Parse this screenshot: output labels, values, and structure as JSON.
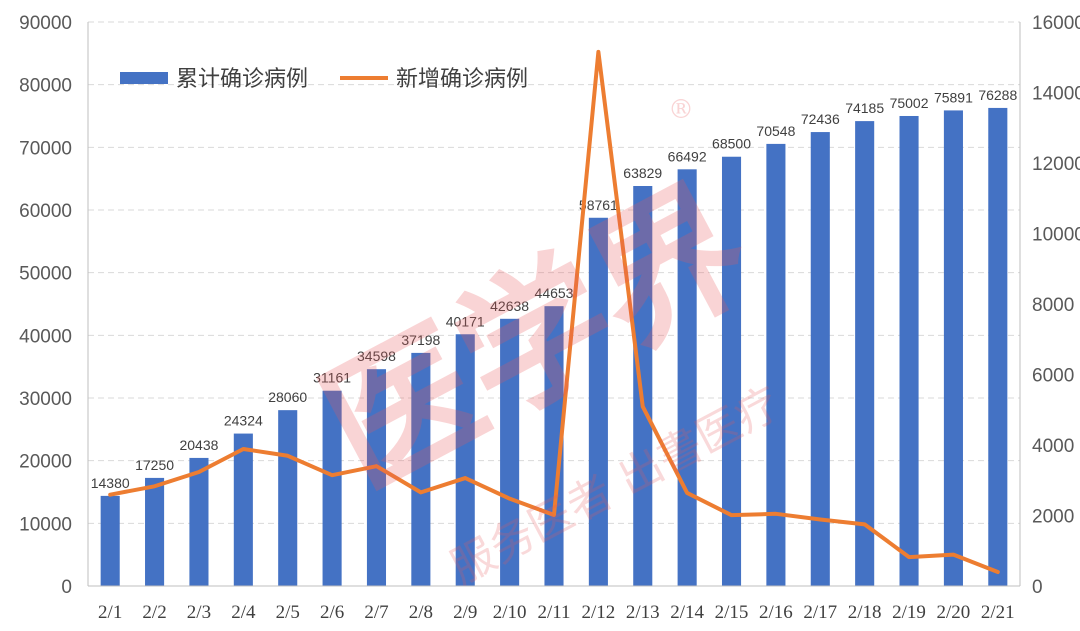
{
  "chart_data": {
    "type": "bar+line",
    "categories": [
      "2/1",
      "2/2",
      "2/3",
      "2/4",
      "2/5",
      "2/6",
      "2/7",
      "2/8",
      "2/9",
      "2/10",
      "2/11",
      "2/12",
      "2/13",
      "2/14",
      "2/15",
      "2/16",
      "2/17",
      "2/18",
      "2/19",
      "2/20",
      "2/21"
    ],
    "series": [
      {
        "name": "累计确诊病例",
        "type": "bar",
        "axis": "left",
        "color": "#4472c4",
        "values": [
          14380,
          17250,
          20438,
          24324,
          28060,
          31161,
          34598,
          37198,
          40171,
          42638,
          44653,
          58761,
          63829,
          66492,
          68500,
          70548,
          72436,
          74185,
          75002,
          75891,
          76288
        ]
      },
      {
        "name": "新增确诊病例",
        "type": "line",
        "axis": "right",
        "color": "#ed7d31",
        "values": [
          2590,
          2829,
          3235,
          3887,
          3694,
          3143,
          3399,
          2656,
          3062,
          2478,
          2015,
          15152,
          5090,
          2641,
          2009,
          2048,
          1886,
          1749,
          820,
          889,
          397
        ]
      }
    ],
    "ylim_left": [
      0,
      90000
    ],
    "yticks_left": [
      "0",
      "10000",
      "20000",
      "30000",
      "40000",
      "50000",
      "60000",
      "70000",
      "80000",
      "90000"
    ],
    "ylim_right": [
      0,
      16000
    ],
    "yticks_right": [
      "0",
      "2000",
      "4000",
      "6000",
      "8000",
      "10000",
      "12000",
      "14000",
      "16000"
    ],
    "grid": true,
    "legend_position": "top-left"
  },
  "watermark": {
    "main": "医学界",
    "mark": "®",
    "sub": "服务医者 出書医疗"
  }
}
